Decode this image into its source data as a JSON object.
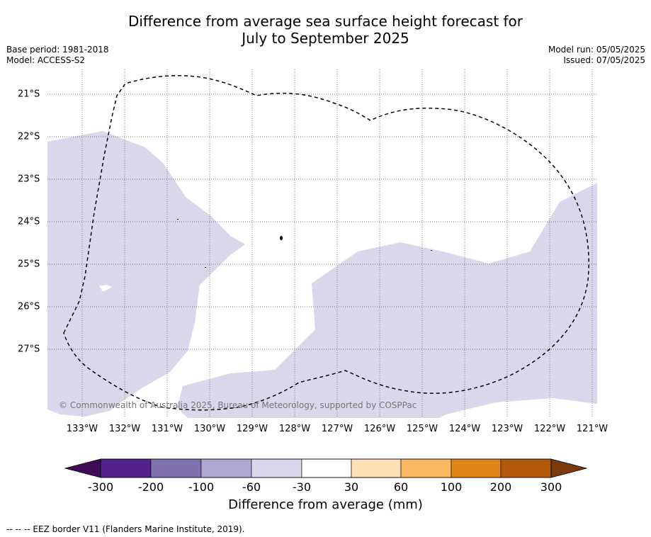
{
  "title_line1": "Difference from average sea surface height forecast for",
  "title_line2": "July to September 2025",
  "base_period": "Base period: 1981-2018",
  "model": "Model: ACCESS-S2",
  "model_run": "Model run: 05/05/2025",
  "issued": "Issued: 07/05/2025",
  "copyright": "© Commonwealth of Australia 2025, Bureau of Meteorology, supported by COSPPac",
  "lat_labels": [
    "21°S",
    "22°S",
    "23°S",
    "24°S",
    "25°S",
    "26°S",
    "27°S"
  ],
  "lon_labels": [
    "133°W",
    "132°W",
    "131°W",
    "130°W",
    "129°W",
    "128°W",
    "127°W",
    "126°W",
    "125°W",
    "124°W",
    "123°W",
    "122°W",
    "121°W"
  ],
  "colorbar": {
    "title": "Difference from average (mm)",
    "tick_labels": [
      "-300",
      "-200",
      "-100",
      "-60",
      "-30",
      "30",
      "60",
      "100",
      "200",
      "300"
    ],
    "colors": [
      "#3f0a56",
      "#54228a",
      "#7f71ad",
      "#b0a8d2",
      "#d8d8ea",
      "#ffffff",
      "#ffdfb6",
      "#fbb862",
      "#e28519",
      "#b25a09",
      "#7a3a0c"
    ]
  },
  "shading_color": "#d8d8ea",
  "footnote": "--  --  -- EEZ border V11 (Flanders Marine Institute, 2019)."
}
